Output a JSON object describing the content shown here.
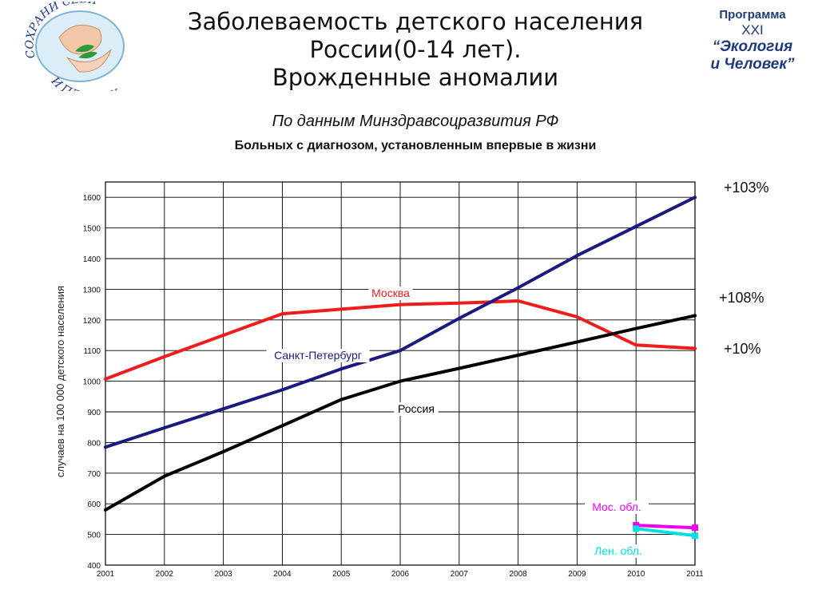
{
  "header": {
    "title_lines": [
      "Заболеваемость детского населения",
      "России(0-14 лет).",
      "Врожденные аномалии"
    ],
    "source": "По данным Минздравсоцразвития РФ",
    "note": "Больных с диагнозом, установленным впервые в жизни"
  },
  "logo_left": {
    "text_top": "СОХРАНИ СЕБЯ",
    "text_bottom": "И ПЛАНЕТУ"
  },
  "logo_right": {
    "line1": "Программа",
    "line2": "XXI",
    "line3": "“Экология",
    "line4": "и Человек”"
  },
  "changes": [
    {
      "label": "+103%",
      "color": "#111111"
    },
    {
      "label": "+108%",
      "color": "#111111"
    },
    {
      "label": "+10%",
      "color": "#111111"
    }
  ],
  "chart_data": {
    "type": "line",
    "ylabel": "случаев на 100 000 детского населения",
    "xlabel": "",
    "xlim": [
      2001,
      2011
    ],
    "ylim": [
      400,
      1650
    ],
    "grid": true,
    "x_ticks": [
      "2001",
      "2002",
      "2003",
      "2004",
      "2005",
      "2006",
      "2007",
      "2008",
      "2009",
      "2010",
      "2011"
    ],
    "y_ticks": [
      "400",
      "500",
      "600",
      "700",
      "800",
      "900",
      "1000",
      "1100",
      "1200",
      "1300",
      "1400",
      "1500",
      "1600"
    ],
    "series": [
      {
        "name": "Москва",
        "color": "#ee1c1c",
        "label_color": "#ee1c1c",
        "x": [
          2001,
          2002,
          2003,
          2004,
          2005,
          2006,
          2007,
          2008,
          2009,
          2010,
          2011
        ],
        "y": [
          1007,
          1080,
          1150,
          1220,
          1235,
          1250,
          1255,
          1262,
          1210,
          1118,
          1107
        ]
      },
      {
        "name": "Санкт-Петербург",
        "color": "#1a1a80",
        "label_color": "#1a1a80",
        "x": [
          2001,
          2002,
          2003,
          2004,
          2005,
          2006,
          2007,
          2008,
          2009,
          2010,
          2011
        ],
        "y": [
          785,
          848,
          910,
          972,
          1040,
          1100,
          1205,
          1305,
          1410,
          1505,
          1600
        ]
      },
      {
        "name": "Россия",
        "color": "#000000",
        "label_color": "#000000",
        "x": [
          2001,
          2002,
          2003,
          2004,
          2005,
          2006,
          2007,
          2008,
          2009,
          2010,
          2011
        ],
        "y": [
          580,
          690,
          770,
          855,
          940,
          1000,
          1042,
          1085,
          1128,
          1172,
          1214
        ]
      },
      {
        "name": "Мос. обл.",
        "color": "#ee00ee",
        "label_color": "#ee00ee",
        "x": [
          2010,
          2011
        ],
        "y": [
          530,
          522
        ]
      },
      {
        "name": "Лен. обл.",
        "color": "#00e0e0",
        "label_color": "#00e0e0",
        "x": [
          2010,
          2011
        ],
        "y": [
          519,
          496
        ]
      }
    ]
  }
}
